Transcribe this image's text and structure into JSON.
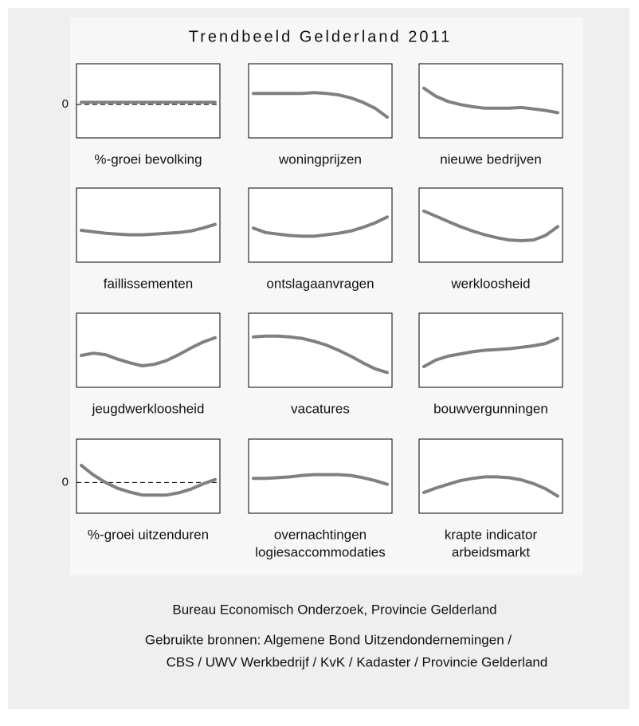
{
  "title": "Trendbeeld Gelderland 2011",
  "chart_data": [
    {
      "type": "line",
      "title": [
        "%-groei bevolking"
      ],
      "color": "#808080",
      "ylim": [
        -4.5,
        5.5
      ],
      "yticks": [
        0
      ],
      "zero_line": true,
      "values": [
        0.3,
        0.3,
        0.3,
        0.3,
        0.3,
        0.3,
        0.3,
        0.3,
        0.3,
        0.3,
        0.3,
        0.3
      ]
    },
    {
      "type": "line",
      "title": [
        "woningprijzen"
      ],
      "color": "#808080",
      "ylim": [
        0,
        10
      ],
      "values": [
        6.0,
        6.0,
        6.0,
        6.0,
        6.0,
        6.1,
        6.0,
        5.8,
        5.4,
        4.8,
        4.0,
        2.8
      ]
    },
    {
      "type": "line",
      "title": [
        "nieuwe bedrijven"
      ],
      "color": "#808080",
      "ylim": [
        0,
        10
      ],
      "values": [
        6.7,
        5.6,
        4.9,
        4.5,
        4.2,
        4.0,
        4.0,
        4.0,
        4.1,
        3.9,
        3.7,
        3.4
      ]
    },
    {
      "type": "line",
      "title": [
        "faillissementen"
      ],
      "color": "#808080",
      "ylim": [
        0,
        10
      ],
      "values": [
        4.3,
        4.1,
        3.9,
        3.8,
        3.7,
        3.7,
        3.8,
        3.9,
        4.0,
        4.2,
        4.6,
        5.1
      ]
    },
    {
      "type": "line",
      "title": [
        "ontslagaanvragen"
      ],
      "color": "#808080",
      "ylim": [
        0,
        10
      ],
      "values": [
        4.6,
        4.0,
        3.8,
        3.6,
        3.5,
        3.5,
        3.7,
        3.9,
        4.2,
        4.7,
        5.3,
        6.1
      ]
    },
    {
      "type": "line",
      "title": [
        "werkloosheid"
      ],
      "color": "#808080",
      "ylim": [
        0,
        10
      ],
      "values": [
        6.9,
        6.2,
        5.5,
        4.8,
        4.2,
        3.7,
        3.3,
        3.0,
        2.9,
        3.0,
        3.6,
        4.8
      ]
    },
    {
      "type": "line",
      "title": [
        "jeugdwerkloosheid"
      ],
      "color": "#808080",
      "ylim": [
        0,
        10
      ],
      "values": [
        4.3,
        4.6,
        4.4,
        3.8,
        3.3,
        2.9,
        3.1,
        3.6,
        4.4,
        5.3,
        6.1,
        6.7
      ]
    },
    {
      "type": "line",
      "title": [
        "vacatures"
      ],
      "color": "#808080",
      "ylim": [
        0,
        10
      ],
      "values": [
        6.8,
        6.9,
        6.9,
        6.8,
        6.6,
        6.2,
        5.7,
        5.0,
        4.2,
        3.3,
        2.5,
        2.0
      ]
    },
    {
      "type": "line",
      "title": [
        "bouwvergunningen"
      ],
      "color": "#808080",
      "ylim": [
        0,
        10
      ],
      "values": [
        2.8,
        3.7,
        4.2,
        4.5,
        4.8,
        5.0,
        5.1,
        5.2,
        5.4,
        5.6,
        5.9,
        6.6
      ]
    },
    {
      "type": "line",
      "title": [
        "%-groei uitzenduren"
      ],
      "color": "#808080",
      "ylim": [
        -4.15,
        5.85
      ],
      "yticks": [
        0
      ],
      "zero_line": true,
      "values": [
        2.3,
        1.0,
        0.0,
        -0.8,
        -1.3,
        -1.7,
        -1.7,
        -1.7,
        -1.4,
        -0.9,
        -0.2,
        0.4
      ]
    },
    {
      "type": "line",
      "title": [
        "overnachtingen",
        "logiesaccommodaties"
      ],
      "color": "#808080",
      "ylim": [
        0,
        10
      ],
      "values": [
        4.7,
        4.7,
        4.8,
        4.9,
        5.1,
        5.2,
        5.2,
        5.2,
        5.1,
        4.8,
        4.4,
        3.9
      ]
    },
    {
      "type": "line",
      "title": [
        "krapte indicator",
        "arbeidsmarkt"
      ],
      "color": "#808080",
      "ylim": [
        0,
        10
      ],
      "values": [
        2.8,
        3.4,
        3.9,
        4.4,
        4.7,
        4.9,
        4.9,
        4.8,
        4.5,
        4.0,
        3.3,
        2.3
      ]
    }
  ],
  "footer": {
    "credit": "Bureau Economisch Onderzoek, Provincie Gelderland",
    "sources": [
      "Gebruikte bronnen: Algemene Bond Uitzendondernemingen /",
      "CBS / UWV Werkbedrijf / KvK / Kadaster / Provincie Gelderland"
    ]
  }
}
